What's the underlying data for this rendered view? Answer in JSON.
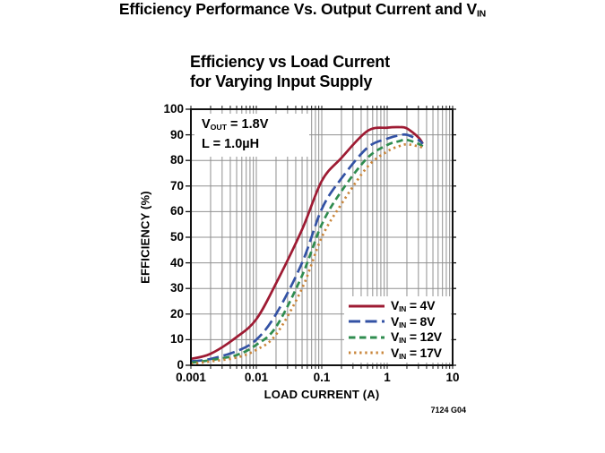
{
  "page": {
    "title_prefix": "Efficiency Performance Vs. Output Current and V",
    "title_sub": "IN"
  },
  "chart": {
    "title_line1": "Efficiency vs Load Current",
    "title_line2": "for Varying Input Supply",
    "annotation": {
      "line1_prefix": "V",
      "line1_sub": "OUT",
      "line1_suffix": " = 1.8V",
      "line2": "L = 1.0µH"
    },
    "ylabel": "EFFICIENCY (%)",
    "xlabel": "LOAD CURRENT (A)",
    "footnote": "7124 G04",
    "yticks": [
      0,
      10,
      20,
      30,
      40,
      50,
      60,
      70,
      80,
      90,
      100
    ],
    "xticks": [
      {
        "value": 0.001,
        "label": "0.001"
      },
      {
        "value": 0.01,
        "label": "0.01"
      },
      {
        "value": 0.1,
        "label": "0.1"
      },
      {
        "value": 1,
        "label": "1"
      },
      {
        "value": 10,
        "label": "10"
      }
    ]
  },
  "chart_data": {
    "type": "line",
    "title": "Efficiency vs Load Current for Varying Input Supply",
    "xlabel": "LOAD CURRENT (A)",
    "ylabel": "EFFICIENCY (%)",
    "x_scale": "log",
    "xlim": [
      0.001,
      10
    ],
    "ylim": [
      0,
      100
    ],
    "y_grid_step": 10,
    "grid": true,
    "legend_position": "lower right",
    "conditions": [
      "VOUT = 1.8V",
      "L = 1.0µH"
    ],
    "x": [
      0.001,
      0.002,
      0.005,
      0.01,
      0.02,
      0.05,
      0.1,
      0.2,
      0.5,
      1,
      1.5,
      2,
      3,
      3.5
    ],
    "series": [
      {
        "name": "VIN = 4V",
        "label_prefix": "V",
        "label_sub": "IN",
        "label_suffix": " = 4V",
        "color": "#9e1b33",
        "style": "solid",
        "values": [
          2.5,
          4.5,
          11,
          18,
          32,
          53,
          72,
          81,
          91.5,
          92.8,
          93,
          92.5,
          89,
          86.5
        ]
      },
      {
        "name": "VIN = 8V",
        "label_prefix": "V",
        "label_sub": "IN",
        "label_suffix": " = 8V",
        "color": "#3352a4",
        "style": "dash-long",
        "values": [
          1.5,
          2.5,
          5.5,
          10,
          20,
          40,
          61,
          73,
          85,
          88.5,
          89.8,
          90,
          88,
          86.5
        ]
      },
      {
        "name": "VIN = 12V",
        "label_prefix": "V",
        "label_sub": "IN",
        "label_suffix": " = 12V",
        "color": "#2f8c4f",
        "style": "dash",
        "values": [
          1,
          2,
          4,
          8,
          15,
          35,
          55,
          68,
          81,
          86,
          87.5,
          88,
          86.5,
          85.5
        ]
      },
      {
        "name": "VIN = 17V",
        "label_prefix": "V",
        "label_sub": "IN",
        "label_suffix": " = 17V",
        "color": "#c9853a",
        "style": "dot",
        "values": [
          0.5,
          1.5,
          3,
          6,
          12,
          30,
          50,
          63,
          77.5,
          83.5,
          85.5,
          86.3,
          85.5,
          85
        ]
      }
    ]
  },
  "colors": {
    "grid": "#909090",
    "axis": "#111111",
    "background": "#ffffff"
  }
}
